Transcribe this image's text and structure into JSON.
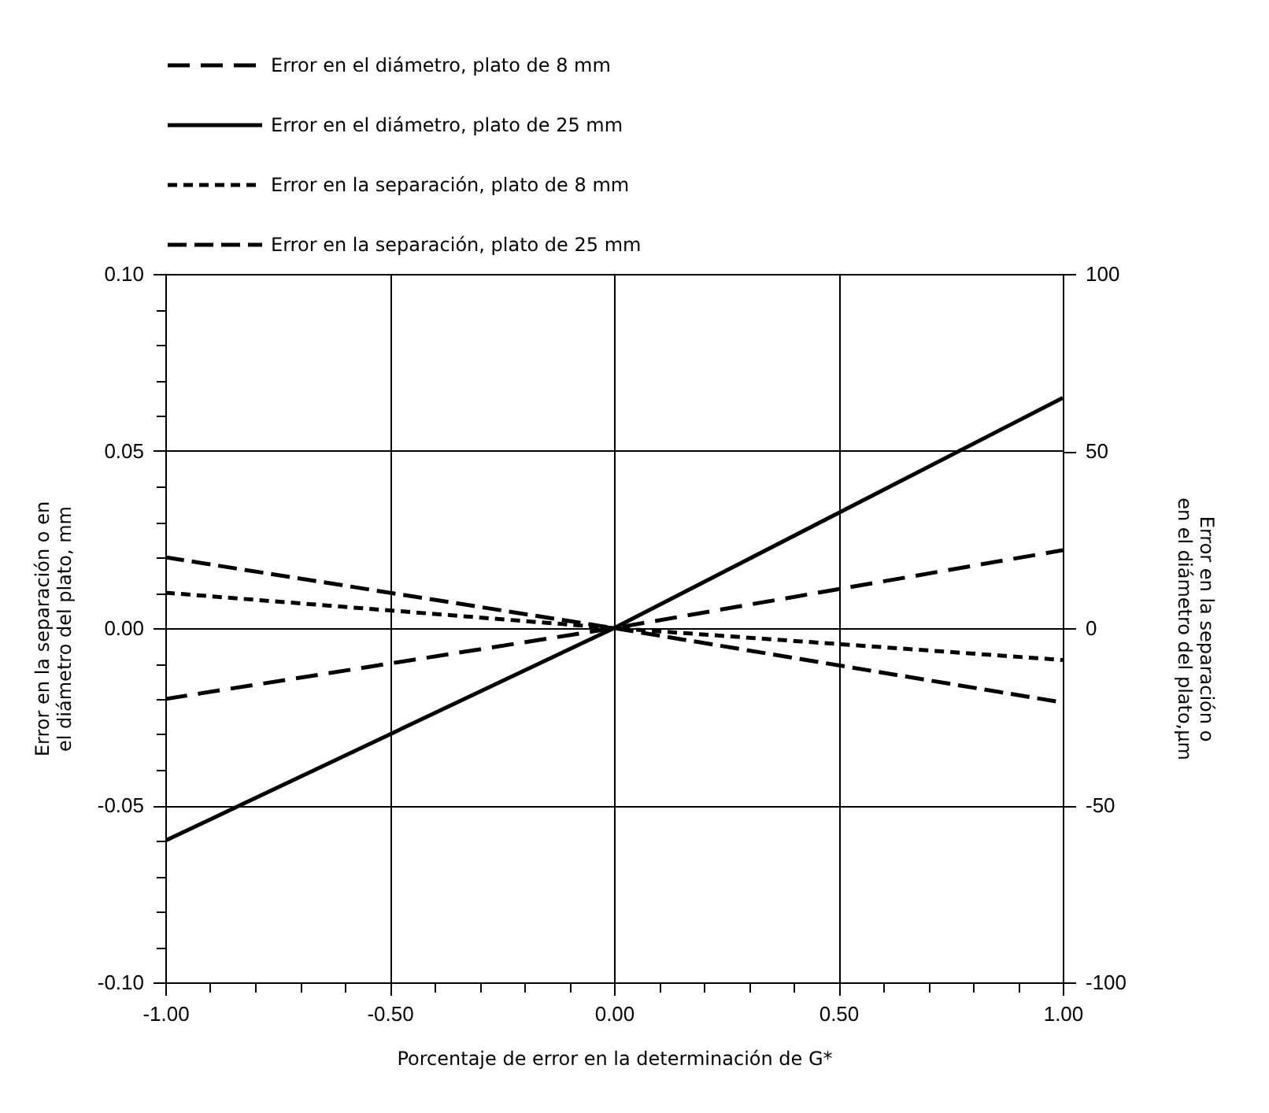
{
  "chart_data": {
    "type": "line",
    "xlabel": "Porcentaje de error en la determinación de G*",
    "ylabel": "Error en la separación o en el diámetro del plato, mm",
    "y2label": "Error en la separación o en el diámetro del plato,µm",
    "x": [
      -1,
      0,
      1
    ],
    "series": [
      {
        "name": "Error en el diámetro, plato de 8 mm",
        "color": "#000000",
        "line_style": "dashed",
        "values": [
          -0.02,
          0,
          0.022
        ]
      },
      {
        "name": "Error en el diámetro, plato de 25 mm",
        "color": "#000000",
        "line_style": "solid",
        "values": [
          -0.06,
          0,
          0.065
        ]
      },
      {
        "name": "Error en la separación, plato de 8 mm",
        "color": "#000000",
        "line_style": "dotted",
        "values": [
          0.01,
          0,
          -0.009
        ]
      },
      {
        "name": "Error en la separación, plato de 25 mm",
        "color": "#000000",
        "line_style": "dashed",
        "values": [
          0.02,
          0,
          -0.021
        ]
      }
    ],
    "xlim": [
      -1,
      1
    ],
    "xticks": [
      {
        "value": -1,
        "label": "-1.00"
      },
      {
        "value": -0.9,
        "label": null
      },
      {
        "value": -0.8,
        "label": null
      },
      {
        "value": -0.7,
        "label": null
      },
      {
        "value": -0.6,
        "label": null
      },
      {
        "value": -0.5,
        "label": "-0.50"
      },
      {
        "value": -0.4,
        "label": null
      },
      {
        "value": -0.3,
        "label": null
      },
      {
        "value": -0.2,
        "label": null
      },
      {
        "value": -0.1,
        "label": null
      },
      {
        "value": 0,
        "label": "0.00"
      },
      {
        "value": 0.1,
        "label": null
      },
      {
        "value": 0.2,
        "label": null
      },
      {
        "value": 0.3,
        "label": null
      },
      {
        "value": 0.4,
        "label": null
      },
      {
        "value": 0.5,
        "label": "0.50"
      },
      {
        "value": 0.6,
        "label": null
      },
      {
        "value": 0.7,
        "label": null
      },
      {
        "value": 0.8,
        "label": null
      },
      {
        "value": 0.9,
        "label": null
      },
      {
        "value": 1,
        "label": "1.00"
      }
    ],
    "ylim": [
      -0.1,
      0.1
    ],
    "yticks": [
      {
        "value": -0.1,
        "label": "-0.10"
      },
      {
        "value": -0.09,
        "label": null
      },
      {
        "value": -0.08,
        "label": null
      },
      {
        "value": -0.07,
        "label": null
      },
      {
        "value": -0.06,
        "label": null
      },
      {
        "value": -0.05,
        "label": "-0.05"
      },
      {
        "value": -0.04,
        "label": null
      },
      {
        "value": -0.03,
        "label": null
      },
      {
        "value": -0.02,
        "label": null
      },
      {
        "value": -0.01,
        "label": null
      },
      {
        "value": 0,
        "label": "0.00"
      },
      {
        "value": 0.01,
        "label": null
      },
      {
        "value": 0.02,
        "label": null
      },
      {
        "value": 0.03,
        "label": null
      },
      {
        "value": 0.04,
        "label": null
      },
      {
        "value": 0.05,
        "label": "0.05"
      },
      {
        "value": 0.06,
        "label": null
      },
      {
        "value": 0.07,
        "label": null
      },
      {
        "value": 0.08,
        "label": null
      },
      {
        "value": 0.09,
        "label": null
      },
      {
        "value": 0.1,
        "label": "0.10"
      }
    ],
    "y2lim": [
      -100,
      100
    ],
    "y2ticks": [
      -100,
      -50,
      0,
      50,
      100
    ],
    "grid": true,
    "legend": "top"
  }
}
